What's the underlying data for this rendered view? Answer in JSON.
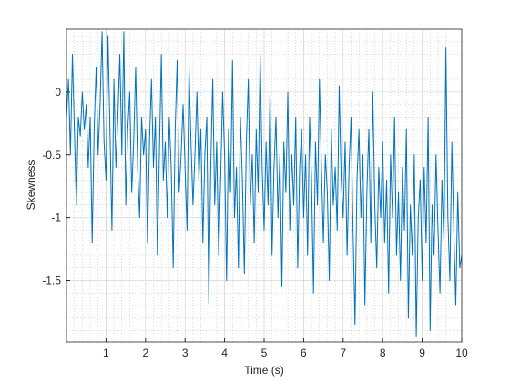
{
  "chart_data": {
    "type": "line",
    "xlabel": "Time (s)",
    "ylabel": "Skewness",
    "xlim": [
      0,
      10
    ],
    "xticks": [
      1,
      2,
      3,
      4,
      5,
      6,
      7,
      8,
      9,
      10
    ],
    "ylim": [
      -1.99,
      0.5
    ],
    "yticks": [
      -1.5,
      -1,
      -0.5,
      0
    ],
    "grid": true,
    "minor_grid": true,
    "x": [
      0,
      0.05,
      0.1,
      0.15,
      0.2,
      0.25,
      0.3,
      0.35,
      0.4,
      0.45,
      0.5,
      0.55,
      0.6,
      0.65,
      0.7,
      0.75,
      0.8,
      0.85,
      0.9,
      0.95,
      1,
      1.05,
      1.1,
      1.15,
      1.2,
      1.25,
      1.3,
      1.35,
      1.4,
      1.45,
      1.5,
      1.55,
      1.6,
      1.65,
      1.7,
      1.75,
      1.8,
      1.85,
      1.9,
      1.95,
      2,
      2.05,
      2.1,
      2.15,
      2.2,
      2.25,
      2.3,
      2.35,
      2.4,
      2.45,
      2.5,
      2.55,
      2.6,
      2.65,
      2.7,
      2.75,
      2.8,
      2.85,
      2.9,
      2.95,
      3,
      3.05,
      3.1,
      3.15,
      3.2,
      3.25,
      3.3,
      3.35,
      3.4,
      3.45,
      3.5,
      3.55,
      3.6,
      3.65,
      3.7,
      3.75,
      3.8,
      3.85,
      3.9,
      3.95,
      4,
      4.05,
      4.1,
      4.15,
      4.2,
      4.25,
      4.3,
      4.35,
      4.4,
      4.45,
      4.5,
      4.55,
      4.6,
      4.65,
      4.7,
      4.75,
      4.8,
      4.85,
      4.9,
      4.95,
      5,
      5.05,
      5.1,
      5.15,
      5.2,
      5.25,
      5.3,
      5.35,
      5.4,
      5.45,
      5.5,
      5.55,
      5.6,
      5.65,
      5.7,
      5.75,
      5.8,
      5.85,
      5.9,
      5.95,
      6,
      6.05,
      6.1,
      6.15,
      6.2,
      6.25,
      6.3,
      6.35,
      6.4,
      6.45,
      6.5,
      6.55,
      6.6,
      6.65,
      6.7,
      6.75,
      6.8,
      6.85,
      6.9,
      6.95,
      7,
      7.05,
      7.1,
      7.15,
      7.2,
      7.25,
      7.3,
      7.35,
      7.4,
      7.45,
      7.5,
      7.55,
      7.6,
      7.65,
      7.7,
      7.75,
      7.8,
      7.85,
      7.9,
      7.95,
      8,
      8.05,
      8.1,
      8.15,
      8.2,
      8.25,
      8.3,
      8.35,
      8.4,
      8.45,
      8.5,
      8.55,
      8.6,
      8.65,
      8.7,
      8.75,
      8.8,
      8.85,
      8.9,
      8.95,
      9,
      9.05,
      9.1,
      9.15,
      9.2,
      9.25,
      9.3,
      9.35,
      9.4,
      9.45,
      9.5,
      9.55,
      9.6,
      9.65,
      9.7,
      9.75,
      9.8,
      9.85,
      9.9,
      9.95,
      10
    ],
    "series": [
      {
        "color": "#0072bd",
        "values": [
          -0.2,
          0.1,
          -0.5,
          0.3,
          -0.3,
          -0.9,
          -0.2,
          -0.35,
          0.0,
          -0.3,
          -0.1,
          -0.6,
          -0.2,
          -1.2,
          -0.3,
          0.2,
          -0.5,
          -0.1,
          0.48,
          -0.4,
          -0.7,
          0.45,
          -0.3,
          -1.1,
          0.1,
          -0.6,
          -0.2,
          0.3,
          -0.5,
          0.48,
          -0.9,
          -0.3,
          0.0,
          -0.8,
          -0.4,
          0.2,
          -0.6,
          -1.0,
          -0.2,
          -0.5,
          -0.3,
          -1.2,
          -0.4,
          0.1,
          -0.6,
          -0.2,
          -1.3,
          -0.5,
          0.3,
          -0.7,
          -0.4,
          -1.0,
          -0.2,
          -0.6,
          -1.4,
          -0.3,
          0.25,
          -0.8,
          -0.5,
          -0.1,
          -0.6,
          -1.1,
          0.2,
          -0.4,
          -0.9,
          -0.5,
          0.0,
          -0.7,
          -0.3,
          -1.2,
          -0.5,
          -0.2,
          -1.68,
          -0.6,
          0.1,
          -0.9,
          -0.4,
          -1.3,
          -0.7,
          0.0,
          -0.5,
          -1.5,
          -0.3,
          -0.8,
          0.25,
          -1.0,
          -0.6,
          -1.4,
          -0.2,
          -0.7,
          -1.45,
          -0.4,
          0.1,
          -0.9,
          -0.5,
          -1.2,
          -0.3,
          -0.8,
          0.3,
          -0.6,
          -1.1,
          -0.4,
          -0.9,
          0.0,
          -1.3,
          -0.6,
          -0.2,
          -1.0,
          -0.5,
          -1.55,
          -0.4,
          -0.8,
          0.0,
          -1.1,
          -0.5,
          -0.9,
          -0.2,
          -1.4,
          -0.6,
          -0.3,
          -1.0,
          -0.5,
          -1.3,
          -0.2,
          -0.7,
          -1.6,
          -0.4,
          -0.9,
          0.1,
          -0.6,
          -1.2,
          -0.5,
          -0.8,
          -1.5,
          -0.3,
          -0.9,
          -0.6,
          -1.1,
          0.05,
          -0.7,
          -1.0,
          -0.4,
          -1.3,
          -0.6,
          -0.2,
          -1.1,
          -1.85,
          -0.7,
          -0.3,
          -1.0,
          -0.5,
          -1.7,
          -0.8,
          -0.3,
          -1.2,
          0.0,
          -0.9,
          -1.4,
          -0.6,
          -1.0,
          -0.4,
          -1.2,
          -0.7,
          -1.6,
          -0.5,
          -1.0,
          -0.2,
          -1.3,
          -0.8,
          -1.5,
          -0.6,
          -1.1,
          -0.3,
          -1.8,
          -0.9,
          -1.3,
          -0.5,
          -1.95,
          -1.0,
          -0.7,
          -1.5,
          -0.6,
          -1.2,
          -0.2,
          -1.9,
          -0.9,
          -1.3,
          -0.5,
          -1.1,
          -1.6,
          -0.7,
          -1.2,
          0.35,
          -1.0,
          -1.5,
          -0.4,
          -1.1,
          -1.7,
          -0.8,
          -1.4,
          -1.3
        ]
      }
    ]
  }
}
